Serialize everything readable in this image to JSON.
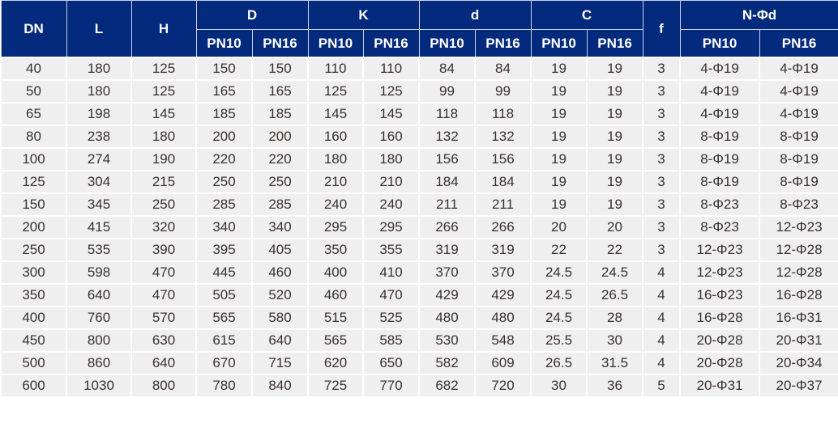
{
  "colors": {
    "header_bg": "#032a7d",
    "header_text": "#ffffff",
    "cell_bg": "#efefef",
    "cell_text": "#3a3030"
  },
  "headers": {
    "DN": "DN",
    "L": "L",
    "H": "H",
    "D": "D",
    "K": "K",
    "d": "d",
    "C": "C",
    "f": "f",
    "N": "N-Φd",
    "pn10": "PN10",
    "pn16": "PN16"
  },
  "rows": [
    [
      "40",
      "180",
      "125",
      "150",
      "150",
      "110",
      "110",
      "84",
      "84",
      "19",
      "19",
      "3",
      "4-Φ19",
      "4-Φ19"
    ],
    [
      "50",
      "180",
      "125",
      "165",
      "165",
      "125",
      "125",
      "99",
      "99",
      "19",
      "19",
      "3",
      "4-Φ19",
      "4-Φ19"
    ],
    [
      "65",
      "198",
      "145",
      "185",
      "185",
      "145",
      "145",
      "118",
      "118",
      "19",
      "19",
      "3",
      "4-Φ19",
      "4-Φ19"
    ],
    [
      "80",
      "238",
      "180",
      "200",
      "200",
      "160",
      "160",
      "132",
      "132",
      "19",
      "19",
      "3",
      "8-Φ19",
      "8-Φ19"
    ],
    [
      "100",
      "274",
      "190",
      "220",
      "220",
      "180",
      "180",
      "156",
      "156",
      "19",
      "19",
      "3",
      "8-Φ19",
      "8-Φ19"
    ],
    [
      "125",
      "304",
      "215",
      "250",
      "250",
      "210",
      "210",
      "184",
      "184",
      "19",
      "19",
      "3",
      "8-Φ19",
      "8-Φ19"
    ],
    [
      "150",
      "345",
      "250",
      "285",
      "285",
      "240",
      "240",
      "211",
      "211",
      "19",
      "19",
      "3",
      "8-Φ23",
      "8-Φ23"
    ],
    [
      "200",
      "415",
      "320",
      "340",
      "340",
      "295",
      "295",
      "266",
      "266",
      "20",
      "20",
      "3",
      "8-Φ23",
      "12-Φ23"
    ],
    [
      "250",
      "535",
      "390",
      "395",
      "405",
      "350",
      "355",
      "319",
      "319",
      "22",
      "22",
      "3",
      "12-Φ23",
      "12-Φ28"
    ],
    [
      "300",
      "598",
      "470",
      "445",
      "460",
      "400",
      "410",
      "370",
      "370",
      "24.5",
      "24.5",
      "4",
      "12-Φ23",
      "12-Φ28"
    ],
    [
      "350",
      "640",
      "470",
      "505",
      "520",
      "460",
      "470",
      "429",
      "429",
      "24.5",
      "26.5",
      "4",
      "16-Φ23",
      "16-Φ28"
    ],
    [
      "400",
      "760",
      "570",
      "565",
      "580",
      "515",
      "525",
      "480",
      "480",
      "24.5",
      "28",
      "4",
      "16-Φ28",
      "16-Φ31"
    ],
    [
      "450",
      "800",
      "630",
      "615",
      "640",
      "565",
      "585",
      "530",
      "548",
      "25.5",
      "30",
      "4",
      "20-Φ28",
      "20-Φ31"
    ],
    [
      "500",
      "860",
      "640",
      "670",
      "715",
      "620",
      "650",
      "582",
      "609",
      "26.5",
      "31.5",
      "4",
      "20-Φ28",
      "20-Φ34"
    ],
    [
      "600",
      "1030",
      "800",
      "780",
      "840",
      "725",
      "770",
      "682",
      "720",
      "30",
      "36",
      "5",
      "20-Φ31",
      "20-Φ37"
    ]
  ]
}
